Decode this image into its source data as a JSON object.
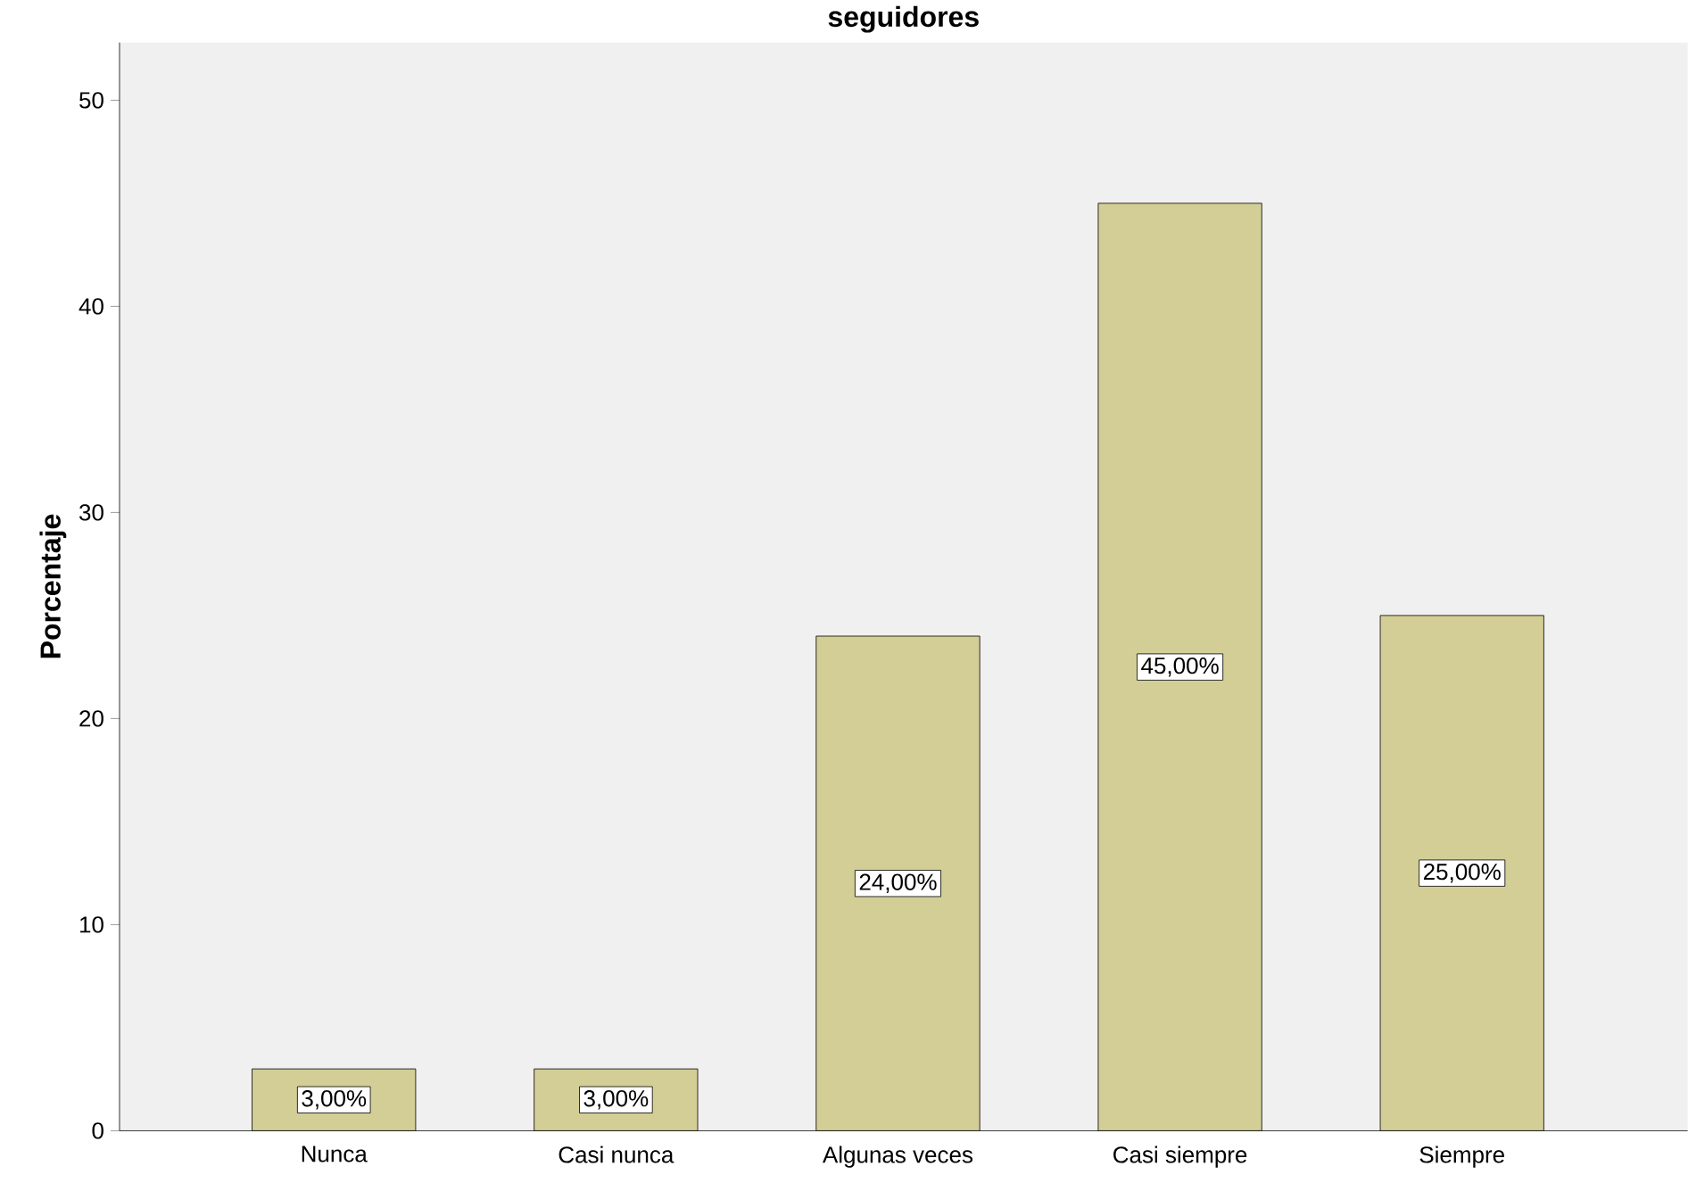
{
  "chart_data": {
    "type": "bar",
    "title": "seguidores",
    "ylabel": "Porcentaje",
    "categories": [
      "Nunca",
      "Casi nunca",
      "Algunas veces",
      "Casi siempre",
      "Siempre"
    ],
    "values": [
      3,
      3,
      24,
      45,
      25
    ],
    "value_labels": [
      "3,00%",
      "3,00%",
      "24,00%",
      "45,00%",
      "25,00%"
    ],
    "color": "#d3ce96",
    "ylim": [
      0,
      52.8
    ],
    "yticks": [
      0,
      10,
      20,
      30,
      40,
      50
    ]
  }
}
